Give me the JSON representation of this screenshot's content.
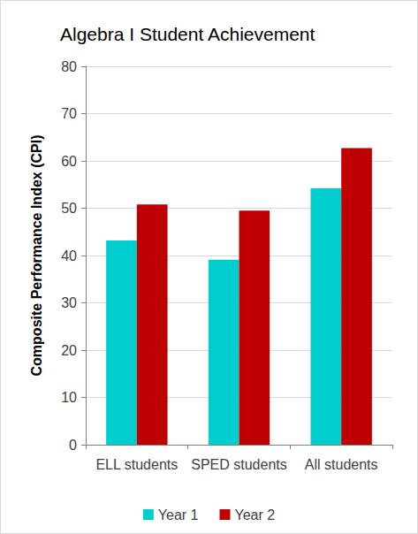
{
  "chart_data": {
    "type": "bar",
    "title": "Algebra I Student Achievement",
    "y_label": "Composite Performance Index (CPI)",
    "categories": [
      "ELL students",
      "SPED students",
      "All students"
    ],
    "series": [
      {
        "name": "Year 1",
        "color": "#00cdcd",
        "values": [
          43.2,
          39.1,
          54.2
        ]
      },
      {
        "name": "Year 2",
        "color": "#c00000",
        "values": [
          50.8,
          49.5,
          62.7
        ]
      }
    ],
    "ylim": [
      0,
      80
    ],
    "yticks": [
      0,
      10,
      20,
      30,
      40,
      50,
      60,
      70,
      80
    ],
    "grid": true,
    "legend": "bottom"
  }
}
